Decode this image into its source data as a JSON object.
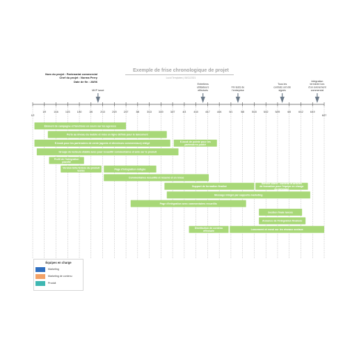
{
  "header": {
    "title": "Exemple de frise chronologique de projet",
    "subtitle": "Lucid Templates  |  06/11/2021",
    "project_lines": [
      "Nom du projet : Partenariat commercial",
      "Chef du projet : Norma Perry",
      "Date de fin : 28/06"
    ]
  },
  "chart_data": {
    "type": "timeline",
    "axis": {
      "start_label": "1/2",
      "end_label": "6/27",
      "ticks": [
        "1/9",
        "1/16",
        "1/23",
        "1/30",
        "2/6",
        "2/13",
        "2/20",
        "2/27",
        "3/6",
        "3/13",
        "3/20",
        "3/27",
        "4/3",
        "4/10",
        "4/17",
        "4/24",
        "5/1",
        "5/8",
        "5/15",
        "5/22",
        "5/29",
        "6/5",
        "6/12",
        "6/19"
      ]
    },
    "milestones": [
      {
        "label": "MVP lancé",
        "week": 5.6
      },
      {
        "label": "Entretiens utilisateurs effectués",
        "week": 14.6
      },
      {
        "label": "Fin tests de l'entreprise",
        "week": 17.6
      },
      {
        "label": "Tous les contrats ont été signés",
        "week": 21.4
      },
      {
        "label": "Intégration terminée lors d'un événement commercial",
        "week": 24.4
      }
    ],
    "bars": [
      {
        "label": "Élément de campagne et fonctions en cours sur les agences",
        "start": 0.15,
        "end": 8.0,
        "row": 0
      },
      {
        "label": "Perte au niveau du mobile et mise en ligne définie pour le lancement",
        "start": 1.3,
        "end": 11.5,
        "row": 1
      },
      {
        "label": "E-book pour les partenaires de vente (agents et directeurs commerciaux) rédigé",
        "start": 0.15,
        "end": 11.8,
        "row": 2
      },
      {
        "label": "E-book de pointe pour les partenaires publié",
        "start": 12.1,
        "end": 15.8,
        "row": 2
      },
      {
        "label": "Groupe de lecteurs établis avec pour recueillir commentaires et avis sur le produit",
        "start": 0.35,
        "end": 12.5,
        "row": 3
      },
      {
        "label": "Profil de l'intégration planifié",
        "start": 1.4,
        "end": 4.4,
        "row": 4
      },
      {
        "label": "Version bêta fermée du produit testée",
        "start": 2.4,
        "end": 5.9,
        "row": 5
      },
      {
        "label": "Page d'intégration rédigée",
        "start": 6.1,
        "end": 10.6,
        "row": 5
      },
      {
        "label": "Commentaires recueillis et résumé et en revue",
        "start": 6.1,
        "end": 15.1,
        "row": 6
      },
      {
        "label": "Support de formation finalisé",
        "start": 11.3,
        "end": 19.0,
        "row": 7
      },
      {
        "label": "Service client : contenu et articles de formation pour l'équipe en charge du message",
        "start": 19.1,
        "end": 23.6,
        "row": 7
      },
      {
        "label": "Message intégré par supports marketing",
        "start": 11.5,
        "end": 23.8,
        "row": 8
      },
      {
        "label": "Page d'intégration avec commentaires recueillis",
        "start": 8.4,
        "end": 18.3,
        "row": 9
      },
      {
        "label": "Gestion finale lancée",
        "start": 19.4,
        "end": 23.1,
        "row": 10
      },
      {
        "label": "Annonce de l'intégration finalisée",
        "start": 19.4,
        "end": 23.4,
        "row": 11
      },
      {
        "label": "Distribution de contenu effectuée",
        "start": 13.4,
        "end": 16.8,
        "row": 12
      },
      {
        "label": "Lancement et envoi sur les réseaux sociaux",
        "start": 16.9,
        "end": 25.0,
        "row": 12
      }
    ]
  },
  "legend": {
    "title": "Équipes en charge",
    "items": [
      {
        "label": "Marketing",
        "color": "#2f6fc1"
      },
      {
        "label": "Marketing de contenu",
        "color": "#f2a268"
      },
      {
        "label": "Produit",
        "color": "#3fb7b2"
      }
    ]
  },
  "colors": {
    "bar": "#a8d878",
    "axis": "#555555",
    "marker": "#6d7b8a"
  }
}
